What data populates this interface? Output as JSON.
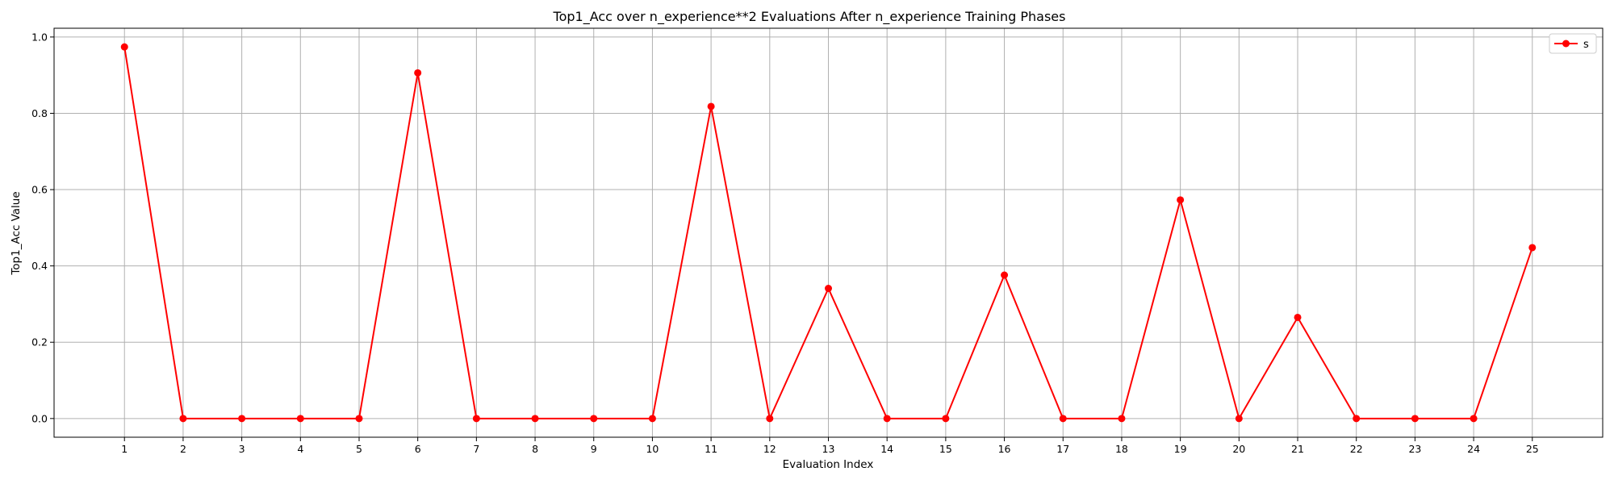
{
  "chart_data": {
    "type": "line",
    "title": "Top1_Acc over n_experience**2 Evaluations After n_experience Training Phases",
    "xlabel": "Evaluation Index",
    "ylabel": "Top1_Acc Value",
    "x": [
      1,
      2,
      3,
      4,
      5,
      6,
      7,
      8,
      9,
      10,
      11,
      12,
      13,
      14,
      15,
      16,
      17,
      18,
      19,
      20,
      21,
      22,
      23,
      24,
      25
    ],
    "series": [
      {
        "name": "s",
        "color": "#ff0000",
        "marker": "circle",
        "values": [
          0.974,
          0.0,
          0.0,
          0.0,
          0.0,
          0.906,
          0.0,
          0.0,
          0.0,
          0.0,
          0.818,
          0.0,
          0.341,
          0.0,
          0.0,
          0.376,
          0.0,
          0.0,
          0.573,
          0.0,
          0.265,
          0.0,
          0.0,
          0.0,
          0.448
        ]
      }
    ],
    "xlim": [
      -0.2,
      26.2
    ],
    "ylim": [
      -0.049,
      1.023
    ],
    "yticks": [
      0.0,
      0.2,
      0.4,
      0.6,
      0.8,
      1.0
    ],
    "ytick_labels": [
      "0.0",
      "0.2",
      "0.4",
      "0.6",
      "0.8",
      "1.0"
    ],
    "xticks": [
      1,
      2,
      3,
      4,
      5,
      6,
      7,
      8,
      9,
      10,
      11,
      12,
      13,
      14,
      15,
      16,
      17,
      18,
      19,
      20,
      21,
      22,
      23,
      24,
      25
    ],
    "xtick_labels": [
      "1",
      "2",
      "3",
      "4",
      "5",
      "6",
      "7",
      "8",
      "9",
      "10",
      "11",
      "12",
      "13",
      "14",
      "15",
      "16",
      "17",
      "18",
      "19",
      "20",
      "21",
      "22",
      "23",
      "24",
      "25"
    ],
    "grid": true,
    "legend": "top-right"
  }
}
